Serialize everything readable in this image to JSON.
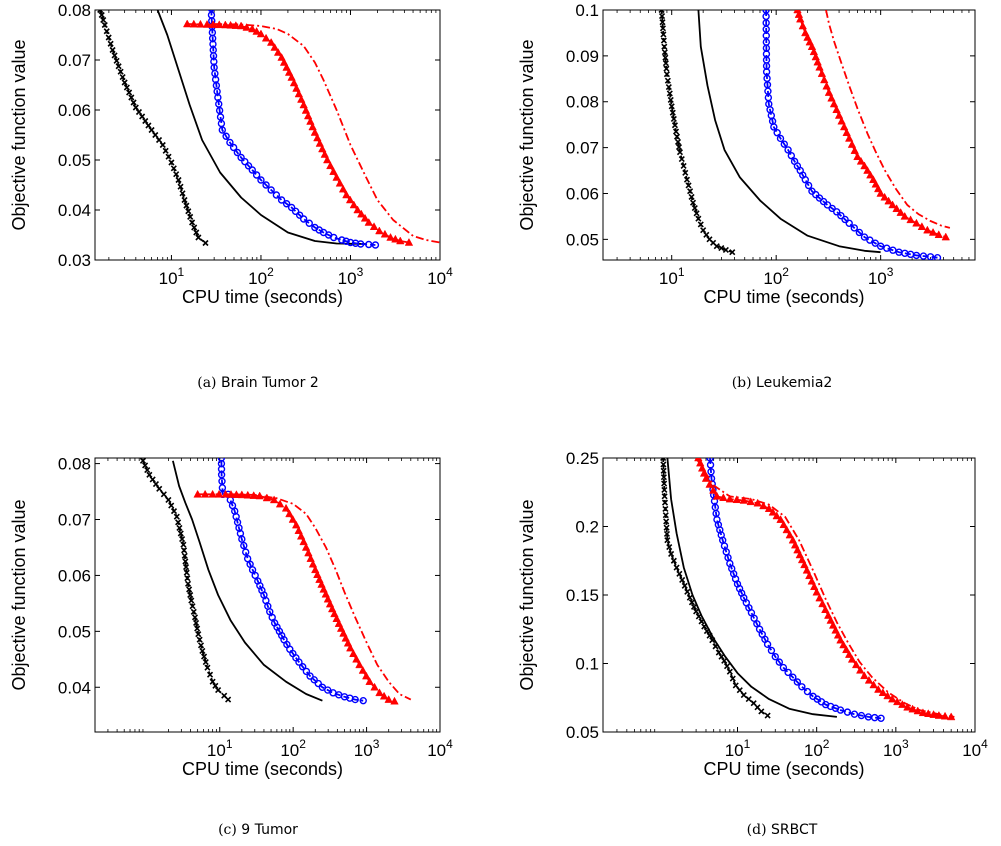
{
  "chart_data": [
    {
      "type": "line",
      "caption": {
        "label": "(a)",
        "name": "Brain Tumor 2"
      },
      "xlabel": "CPU time (seconds)",
      "ylabel": "Objective function value",
      "xscale": "log",
      "xlim": [
        1.4,
        10000
      ],
      "ylim": [
        0.03,
        0.08
      ],
      "xticks": [
        10,
        100,
        1000,
        10000
      ],
      "xticklabels": [
        {
          "base": "10",
          "exp": "1"
        },
        {
          "base": "10",
          "exp": "2"
        },
        {
          "base": "10",
          "exp": "3"
        },
        {
          "base": "10",
          "exp": "4"
        }
      ],
      "yticks": [
        0.03,
        0.04,
        0.05,
        0.06,
        0.07,
        0.08
      ],
      "yticklabels": [
        "0.03",
        "0.04",
        "0.05",
        "0.06",
        "0.07",
        "0.08"
      ],
      "series": [
        {
          "color": "#000000",
          "dash": "4,3",
          "marker": "x",
          "x": [
            1.6,
            1.8,
            2.2,
            3,
            4,
            6,
            8,
            10,
            12,
            14,
            17,
            20,
            24
          ],
          "y": [
            0.08,
            0.077,
            0.072,
            0.0655,
            0.0605,
            0.056,
            0.053,
            0.0495,
            0.046,
            0.042,
            0.0375,
            0.0345,
            0.0334
          ]
        },
        {
          "color": "#000000",
          "dash": "",
          "marker": "none",
          "x": [
            7,
            9,
            12,
            16,
            22,
            35,
            60,
            100,
            200,
            400,
            700,
            1500
          ],
          "y": [
            0.08,
            0.075,
            0.068,
            0.061,
            0.054,
            0.0475,
            0.0425,
            0.039,
            0.0355,
            0.0338,
            0.0333,
            0.0332
          ]
        },
        {
          "color": "#0000ff",
          "dash": "6,3",
          "marker": "o",
          "x": [
            27,
            28,
            30,
            33,
            37,
            45,
            60,
            80,
            100,
            130,
            170,
            220,
            300,
            400,
            500,
            650,
            800,
            1000,
            1300,
            1600,
            1900
          ],
          "y": [
            0.0855,
            0.079,
            0.0685,
            0.0625,
            0.056,
            0.0535,
            0.0505,
            0.048,
            0.046,
            0.044,
            0.042,
            0.0405,
            0.0382,
            0.0365,
            0.0355,
            0.0345,
            0.034,
            0.0335,
            0.0332,
            0.0331,
            0.033
          ]
        },
        {
          "color": "#ff0000",
          "dash": "6,3",
          "marker": "^",
          "x": [
            15,
            25,
            40,
            60,
            80,
            100,
            130,
            170,
            220,
            300,
            400,
            550,
            700,
            900,
            1200,
            1600,
            2100,
            2800,
            3600,
            4500
          ],
          "y": [
            0.0772,
            0.0771,
            0.077,
            0.0768,
            0.0762,
            0.0752,
            0.0735,
            0.0705,
            0.0665,
            0.061,
            0.0555,
            0.05,
            0.0465,
            0.043,
            0.04,
            0.0375,
            0.0358,
            0.0345,
            0.0338,
            0.0335
          ]
        },
        {
          "color": "#ff0000",
          "dash": "8,3,2,3",
          "marker": "none",
          "x": [
            30,
            60,
            100,
            150,
            200,
            300,
            400,
            500,
            700,
            1000,
            1500,
            2000,
            3000,
            5000,
            7000,
            10000
          ],
          "y": [
            0.0772,
            0.0771,
            0.0768,
            0.0762,
            0.0752,
            0.0728,
            0.0695,
            0.066,
            0.06,
            0.053,
            0.0465,
            0.042,
            0.038,
            0.0348,
            0.034,
            0.0335
          ]
        }
      ]
    },
    {
      "type": "line",
      "caption": {
        "label": "(b)",
        "name": "Leukemia2"
      },
      "xlabel": "CPU time (seconds)",
      "ylabel": "Objective function value",
      "xscale": "log",
      "xlim": [
        2.2,
        8000
      ],
      "ylim": [
        0.0455,
        0.1
      ],
      "xticks": [
        10,
        100,
        1000
      ],
      "xticklabels": [
        {
          "base": "10",
          "exp": "1"
        },
        {
          "base": "10",
          "exp": "2"
        },
        {
          "base": "10",
          "exp": "3"
        }
      ],
      "yticks": [
        0.05,
        0.06,
        0.07,
        0.08,
        0.09,
        0.1
      ],
      "yticklabels": [
        "0.05",
        "0.06",
        "0.07",
        "0.08",
        "0.09",
        "0.1"
      ],
      "series": [
        {
          "color": "#000000",
          "dash": "4,3",
          "marker": "x",
          "x": [
            8,
            8.5,
            9,
            10,
            11,
            12,
            13,
            14,
            15,
            16,
            18,
            20,
            23,
            27,
            33,
            38
          ],
          "y": [
            0.1,
            0.092,
            0.086,
            0.079,
            0.0735,
            0.069,
            0.066,
            0.063,
            0.0605,
            0.058,
            0.0545,
            0.052,
            0.05,
            0.0485,
            0.0477,
            0.0472
          ]
        },
        {
          "color": "#000000",
          "dash": "",
          "marker": "none",
          "x": [
            18,
            19,
            22,
            26,
            32,
            45,
            70,
            110,
            200,
            400,
            700,
            1000
          ],
          "y": [
            0.1,
            0.092,
            0.0835,
            0.076,
            0.0695,
            0.0635,
            0.0585,
            0.0545,
            0.0508,
            0.0485,
            0.0475,
            0.0472
          ]
        },
        {
          "color": "#0000ff",
          "dash": "6,3",
          "marker": "o",
          "x": [
            80,
            80.5,
            81,
            85,
            95,
            110,
            130,
            150,
            170,
            190,
            220,
            260,
            310,
            380,
            500,
            700,
            1000,
            1500,
            2200,
            3000,
            3500
          ],
          "y": [
            0.1,
            0.093,
            0.0865,
            0.0795,
            0.0745,
            0.072,
            0.0695,
            0.067,
            0.065,
            0.063,
            0.0605,
            0.059,
            0.0575,
            0.056,
            0.0535,
            0.0505,
            0.0485,
            0.0472,
            0.0465,
            0.0462,
            0.046
          ]
        },
        {
          "color": "#ff0000",
          "dash": "6,3",
          "marker": "^",
          "x": [
            160,
            170,
            190,
            220,
            260,
            320,
            400,
            500,
            600,
            700,
            850,
            1000,
            1300,
            1700,
            2200,
            2800,
            3600,
            4200
          ],
          "y": [
            0.1,
            0.098,
            0.095,
            0.092,
            0.0875,
            0.082,
            0.077,
            0.072,
            0.068,
            0.066,
            0.063,
            0.06,
            0.0575,
            0.055,
            0.0535,
            0.052,
            0.051,
            0.0505
          ]
        },
        {
          "color": "#ff0000",
          "dash": "8,3,2,3",
          "marker": "none",
          "x": [
            300,
            320,
            360,
            420,
            500,
            600,
            750,
            900,
            1100,
            1400,
            1800,
            2300,
            3000,
            3800,
            4600
          ],
          "y": [
            0.1,
            0.097,
            0.093,
            0.0885,
            0.0835,
            0.0785,
            0.073,
            0.069,
            0.065,
            0.061,
            0.0575,
            0.0555,
            0.054,
            0.053,
            0.0525
          ]
        }
      ]
    },
    {
      "type": "line",
      "caption": {
        "label": "(c)",
        "name": "9 Tumor"
      },
      "xlabel": "CPU time (seconds)",
      "ylabel": "Objective function value",
      "xscale": "log",
      "xlim": [
        0.2,
        10000
      ],
      "ylim": [
        0.032,
        0.081
      ],
      "xticks": [
        10,
        100,
        1000,
        10000
      ],
      "xticklabels": [
        {
          "base": "10",
          "exp": "1"
        },
        {
          "base": "10",
          "exp": "2"
        },
        {
          "base": "10",
          "exp": "3"
        },
        {
          "base": "10",
          "exp": "4"
        }
      ],
      "yticks": [
        0.04,
        0.05,
        0.06,
        0.07,
        0.08
      ],
      "yticklabels": [
        "0.04",
        "0.05",
        "0.06",
        "0.07",
        "0.08"
      ],
      "series": [
        {
          "color": "#000000",
          "dash": "4,3",
          "marker": "x",
          "x": [
            0.9,
            1.1,
            1.5,
            2,
            2.6,
            3.2,
            3.7,
            4.1,
            4.6,
            5.1,
            5.8,
            6.8,
            8,
            9.5,
            11.5,
            13
          ],
          "y": [
            0.0805,
            0.078,
            0.0755,
            0.0735,
            0.0705,
            0.0655,
            0.0585,
            0.0555,
            0.0525,
            0.0495,
            0.0465,
            0.0435,
            0.041,
            0.0395,
            0.0385,
            0.0378
          ]
        },
        {
          "color": "#000000",
          "dash": "",
          "marker": "none",
          "x": [
            2.3,
            2.8,
            3.4,
            4.2,
            5.3,
            7,
            9.5,
            14,
            22,
            40,
            80,
            150,
            250
          ],
          "y": [
            0.0805,
            0.076,
            0.073,
            0.07,
            0.066,
            0.061,
            0.0565,
            0.052,
            0.048,
            0.044,
            0.041,
            0.0388,
            0.0376
          ]
        },
        {
          "color": "#0000ff",
          "dash": "6,3",
          "marker": "o",
          "x": [
            10.5,
            10.6,
            11,
            13,
            16,
            20,
            24,
            28,
            33,
            40,
            48,
            56,
            65,
            75,
            90,
            120,
            170,
            250,
            350,
            500,
            700,
            900
          ],
          "y": [
            0.082,
            0.078,
            0.0745,
            0.0745,
            0.0715,
            0.0665,
            0.063,
            0.061,
            0.059,
            0.0565,
            0.0535,
            0.0515,
            0.05,
            0.0485,
            0.0468,
            0.0445,
            0.042,
            0.04,
            0.039,
            0.0383,
            0.0378,
            0.0376
          ]
        },
        {
          "color": "#ff0000",
          "dash": "6,3",
          "marker": "^",
          "x": [
            5,
            8,
            12,
            20,
            35,
            55,
            80,
            110,
            150,
            200,
            260,
            340,
            450,
            600,
            800,
            1100,
            1500,
            2000,
            2400
          ],
          "y": [
            0.0745,
            0.0745,
            0.0745,
            0.0744,
            0.0742,
            0.0735,
            0.072,
            0.069,
            0.065,
            0.061,
            0.0575,
            0.054,
            0.0505,
            0.047,
            0.044,
            0.041,
            0.039,
            0.0378,
            0.0375
          ]
        },
        {
          "color": "#ff0000",
          "dash": "8,3,2,3",
          "marker": "none",
          "x": [
            15,
            30,
            60,
            100,
            150,
            200,
            280,
            380,
            500,
            700,
            1000,
            1400,
            2000,
            2800,
            4000
          ],
          "y": [
            0.0745,
            0.0744,
            0.0738,
            0.0728,
            0.071,
            0.0685,
            0.065,
            0.061,
            0.057,
            0.0525,
            0.048,
            0.044,
            0.041,
            0.0388,
            0.0378
          ]
        }
      ]
    },
    {
      "type": "line",
      "caption": {
        "label": "(d)",
        "name": "SRBCT"
      },
      "xlabel": "CPU time (seconds)",
      "ylabel": "Objective function value",
      "xscale": "log",
      "xlim": [
        0.2,
        10000
      ],
      "ylim": [
        0.05,
        0.25
      ],
      "xticks": [
        10,
        100,
        1000,
        10000
      ],
      "xticklabels": [
        {
          "base": "10",
          "exp": "1"
        },
        {
          "base": "10",
          "exp": "2"
        },
        {
          "base": "10",
          "exp": "3"
        },
        {
          "base": "10",
          "exp": "4"
        }
      ],
      "yticks": [
        0.05,
        0.1,
        0.15,
        0.2,
        0.25
      ],
      "yticklabels": [
        "0.05",
        "0.1",
        "0.15",
        "0.2",
        "0.25"
      ],
      "series": [
        {
          "color": "#000000",
          "dash": "4,3",
          "marker": "x",
          "x": [
            1.15,
            1.2,
            1.3,
            1.45,
            1.7,
            2,
            2.5,
            3,
            3.8,
            4.8,
            5.8,
            6.8,
            8,
            9.5,
            12,
            16,
            20,
            24
          ],
          "y": [
            0.25,
            0.222,
            0.19,
            0.18,
            0.17,
            0.161,
            0.148,
            0.138,
            0.127,
            0.117,
            0.108,
            0.102,
            0.094,
            0.084,
            0.077,
            0.071,
            0.065,
            0.062
          ]
        },
        {
          "color": "#000000",
          "dash": "",
          "marker": "none",
          "x": [
            1.3,
            1.45,
            1.7,
            2.1,
            2.7,
            3.5,
            5,
            7,
            10,
            15,
            25,
            45,
            90,
            180
          ],
          "y": [
            0.25,
            0.22,
            0.195,
            0.17,
            0.15,
            0.135,
            0.118,
            0.105,
            0.093,
            0.083,
            0.074,
            0.067,
            0.063,
            0.061
          ]
        },
        {
          "color": "#0000ff",
          "dash": "6,3",
          "marker": "o",
          "x": [
            4.5,
            4.7,
            5,
            5.5,
            6.5,
            8,
            10,
            12,
            15,
            19,
            24,
            30,
            38,
            50,
            65,
            90,
            130,
            200,
            300,
            450,
            650
          ],
          "y": [
            0.25,
            0.235,
            0.223,
            0.205,
            0.19,
            0.173,
            0.158,
            0.148,
            0.137,
            0.125,
            0.114,
            0.105,
            0.097,
            0.09,
            0.083,
            0.076,
            0.07,
            0.066,
            0.063,
            0.061,
            0.06
          ]
        },
        {
          "color": "#ff0000",
          "dash": "6,3",
          "marker": "^",
          "x": [
            3.2,
            4,
            5.5,
            8,
            12,
            18,
            25,
            35,
            50,
            70,
            100,
            140,
            200,
            280,
            400,
            600,
            900,
            1400,
            2200,
            3500,
            5000
          ],
          "y": [
            0.25,
            0.235,
            0.222,
            0.22,
            0.219,
            0.217,
            0.213,
            0.205,
            0.19,
            0.172,
            0.152,
            0.135,
            0.117,
            0.103,
            0.091,
            0.081,
            0.074,
            0.068,
            0.064,
            0.062,
            0.061
          ]
        },
        {
          "color": "#ff0000",
          "dash": "8,3,2,3",
          "marker": "none",
          "x": [
            3,
            5,
            8,
            15,
            25,
            40,
            60,
            90,
            130,
            180,
            250,
            350,
            500,
            800,
            1300,
            2000,
            3500,
            5500
          ],
          "y": [
            0.25,
            0.23,
            0.222,
            0.22,
            0.216,
            0.207,
            0.19,
            0.168,
            0.147,
            0.13,
            0.115,
            0.101,
            0.09,
            0.079,
            0.071,
            0.066,
            0.063,
            0.061
          ]
        }
      ]
    }
  ]
}
